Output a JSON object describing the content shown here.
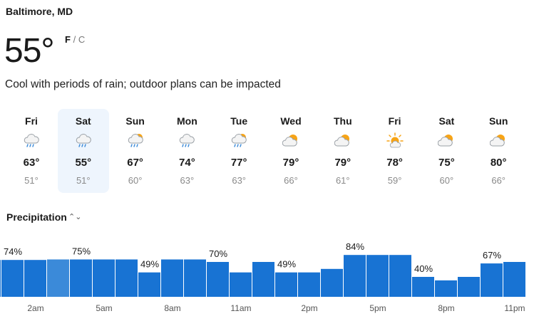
{
  "location": "Baltimore, MD",
  "current": {
    "temp": "55°",
    "unit_f": "F",
    "unit_sep": "/",
    "unit_c": "C",
    "summary": "Cool with periods of rain; outdoor plans can be impacted"
  },
  "forecast": [
    {
      "day": "Fri",
      "icon": "rain-cloud-icon",
      "high": "63°",
      "low": "51°",
      "selected": false
    },
    {
      "day": "Sat",
      "icon": "rain-cloud-icon",
      "high": "55°",
      "low": "51°",
      "selected": true
    },
    {
      "day": "Sun",
      "icon": "partly-sunny-rain-icon",
      "high": "67°",
      "low": "60°",
      "selected": false
    },
    {
      "day": "Mon",
      "icon": "rain-cloud-icon",
      "high": "74°",
      "low": "63°",
      "selected": false
    },
    {
      "day": "Tue",
      "icon": "partly-sunny-rain-icon",
      "high": "77°",
      "low": "63°",
      "selected": false
    },
    {
      "day": "Wed",
      "icon": "partly-cloudy-icon",
      "high": "79°",
      "low": "66°",
      "selected": false
    },
    {
      "day": "Thu",
      "icon": "partly-cloudy-icon",
      "high": "79°",
      "low": "61°",
      "selected": false
    },
    {
      "day": "Fri",
      "icon": "sun-cloud-icon",
      "high": "78°",
      "low": "59°",
      "selected": false
    },
    {
      "day": "Sat",
      "icon": "partly-cloudy-icon",
      "high": "75°",
      "low": "60°",
      "selected": false
    },
    {
      "day": "Sun",
      "icon": "partly-cloudy-icon",
      "high": "80°",
      "low": "66°",
      "selected": false
    }
  ],
  "precipitation": {
    "label": "Precipitation",
    "toggle_icon": "chevron-up-down-icon"
  },
  "chart_data": {
    "type": "bar",
    "title": "",
    "xlabel": "",
    "ylabel": "",
    "unit": "%",
    "ylim": [
      0,
      100
    ],
    "x_tick_labels": [
      "2am",
      "5am",
      "8am",
      "11am",
      "2pm",
      "5pm",
      "8pm",
      "11pm"
    ],
    "values": [
      74,
      74,
      74,
      75,
      75,
      75,
      75,
      49,
      75,
      75,
      70,
      49,
      70,
      49,
      49,
      56,
      84,
      84,
      84,
      40,
      33,
      40,
      67,
      70
    ],
    "data_labels": [
      {
        "index": 1,
        "text": "74%"
      },
      {
        "index": 4,
        "text": "75%"
      },
      {
        "index": 7,
        "text": "49%"
      },
      {
        "index": 10,
        "text": "70%"
      },
      {
        "index": 13,
        "text": "49%"
      },
      {
        "index": 16,
        "text": "84%"
      },
      {
        "index": 19,
        "text": "40%"
      },
      {
        "index": 22,
        "text": "67%"
      }
    ],
    "highlighted_index": 3,
    "colors": {
      "bar": "#1873d3",
      "highlight": "#3b8ad9",
      "label": "#1a1a1a",
      "tick": "#555555"
    }
  }
}
